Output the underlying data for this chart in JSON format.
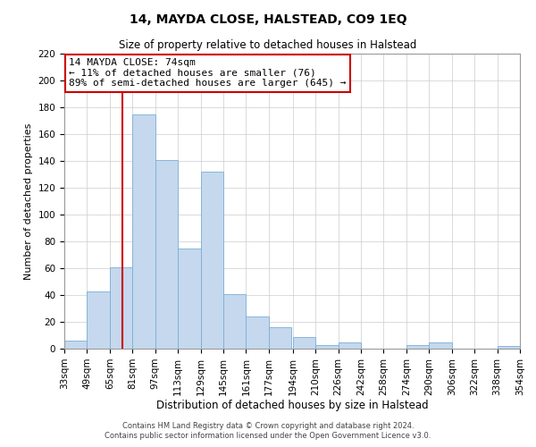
{
  "title": "14, MAYDA CLOSE, HALSTEAD, CO9 1EQ",
  "subtitle": "Size of property relative to detached houses in Halstead",
  "xlabel": "Distribution of detached houses by size in Halstead",
  "ylabel": "Number of detached properties",
  "bin_labels": [
    "33sqm",
    "49sqm",
    "65sqm",
    "81sqm",
    "97sqm",
    "113sqm",
    "129sqm",
    "145sqm",
    "161sqm",
    "177sqm",
    "194sqm",
    "210sqm",
    "226sqm",
    "242sqm",
    "258sqm",
    "274sqm",
    "290sqm",
    "306sqm",
    "322sqm",
    "338sqm",
    "354sqm"
  ],
  "bin_edges": [
    33,
    49,
    65,
    81,
    97,
    113,
    129,
    145,
    161,
    177,
    194,
    210,
    226,
    242,
    258,
    274,
    290,
    306,
    322,
    338,
    354
  ],
  "bar_heights": [
    6,
    43,
    61,
    175,
    141,
    75,
    132,
    41,
    24,
    16,
    9,
    3,
    5,
    0,
    0,
    3,
    5,
    0,
    0,
    2,
    0
  ],
  "bar_color": "#c5d8ee",
  "bar_edge_color": "#7aafd4",
  "property_line_x": 74,
  "property_line_color": "#cc0000",
  "annotation_line1": "14 MAYDA CLOSE: 74sqm",
  "annotation_line2": "← 11% of detached houses are smaller (76)",
  "annotation_line3": "89% of semi-detached houses are larger (645) →",
  "annotation_box_color": "#ffffff",
  "annotation_box_edge_color": "#cc0000",
  "ylim": [
    0,
    220
  ],
  "yticks": [
    0,
    20,
    40,
    60,
    80,
    100,
    120,
    140,
    160,
    180,
    200,
    220
  ],
  "footer_line1": "Contains HM Land Registry data © Crown copyright and database right 2024.",
  "footer_line2": "Contains public sector information licensed under the Open Government Licence v3.0.",
  "background_color": "#ffffff",
  "grid_color": "#cccccc",
  "title_fontsize": 10,
  "subtitle_fontsize": 8.5,
  "xlabel_fontsize": 8.5,
  "ylabel_fontsize": 8,
  "tick_fontsize": 7.5,
  "annotation_fontsize": 8,
  "footer_fontsize": 6
}
